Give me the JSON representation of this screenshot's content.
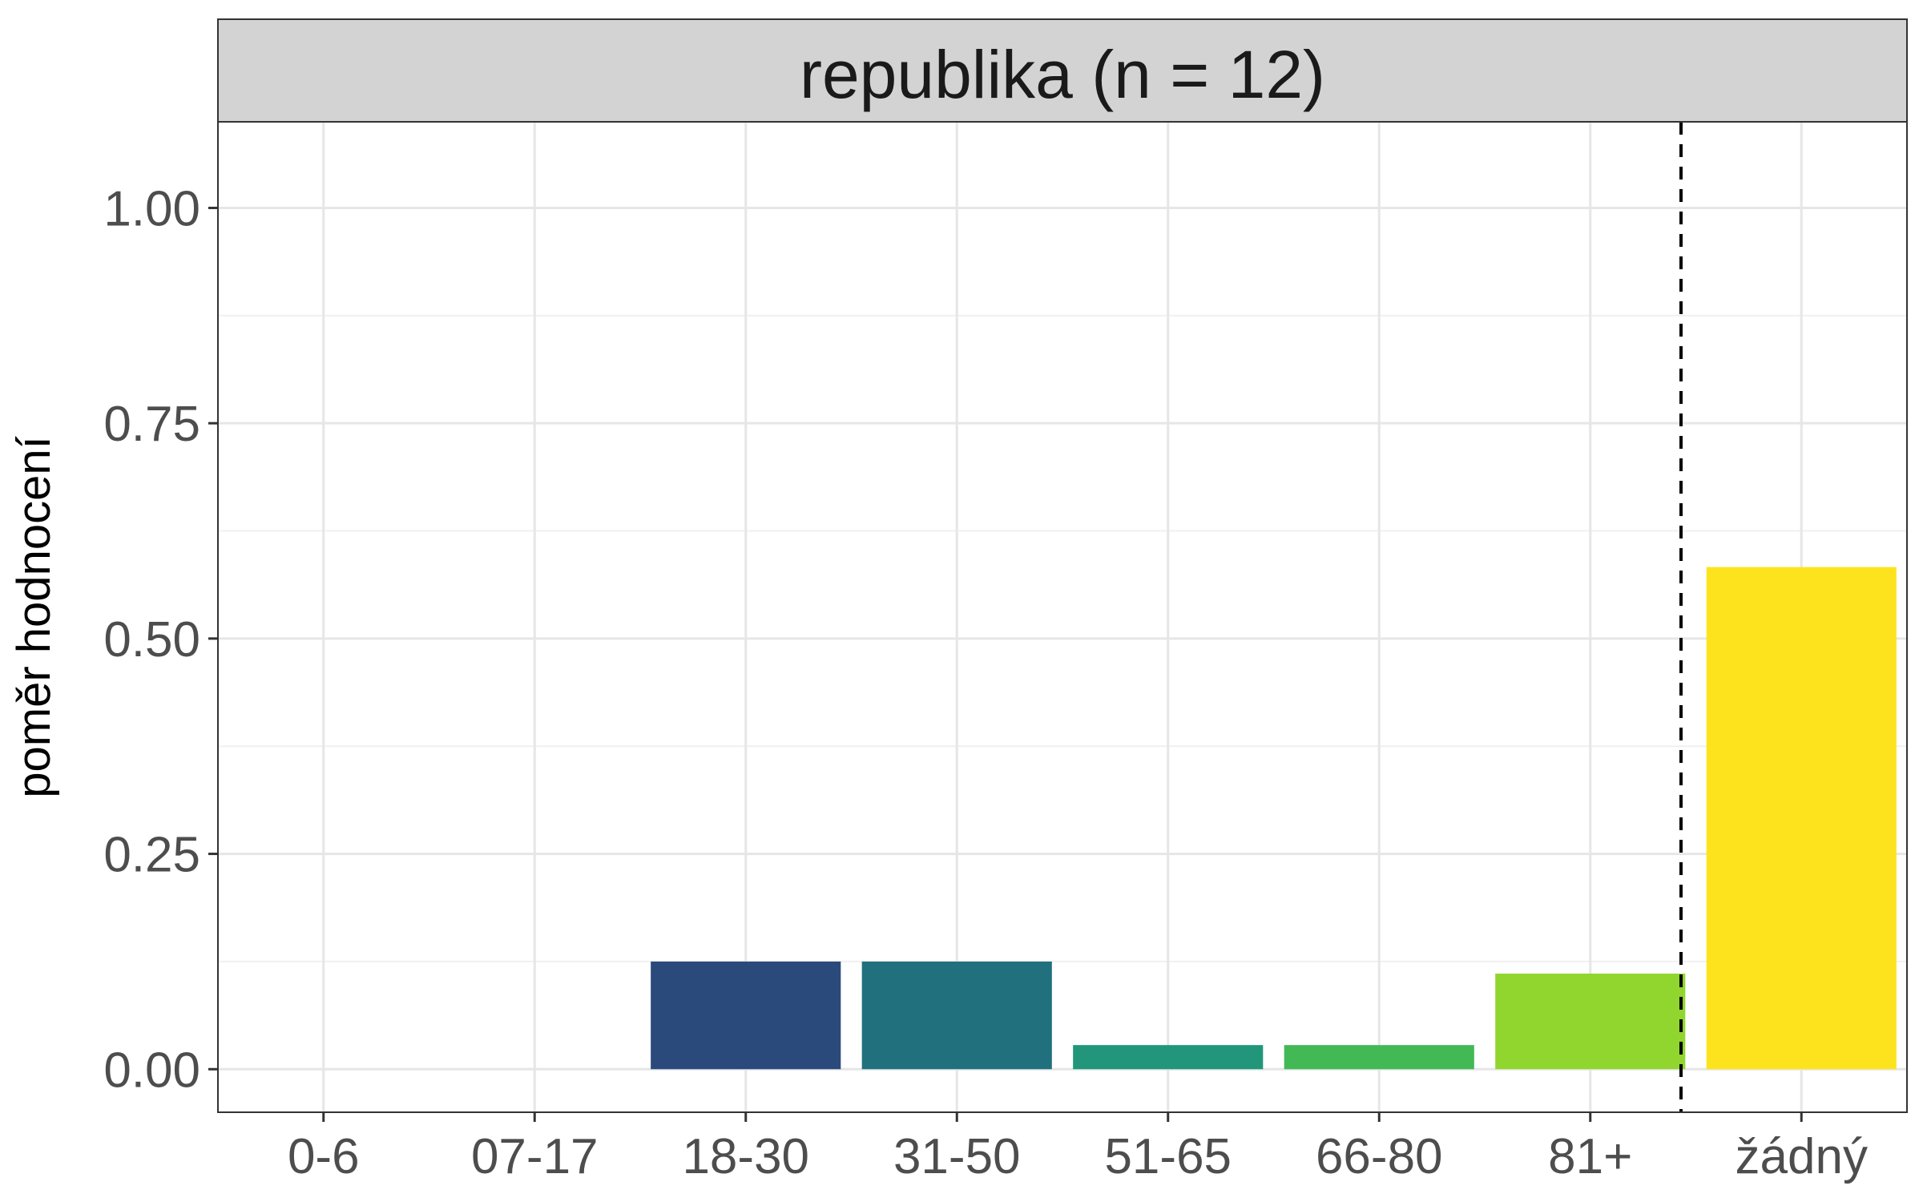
{
  "chart_data": {
    "type": "bar",
    "title": "republika (n = 12)",
    "xlabel": "",
    "ylabel": "poměr hodnocení",
    "categories": [
      "0-6",
      "07-17",
      "18-30",
      "31-50",
      "51-65",
      "66-80",
      "81+",
      "žádný"
    ],
    "values": [
      0,
      0,
      0.125,
      0.125,
      0.028,
      0.028,
      0.111,
      0.583
    ],
    "colors": [
      "#482878",
      "#3e4a89",
      "#2a4a7c",
      "#21707e",
      "#21967a",
      "#42b955",
      "#91d62e",
      "#fde31e"
    ],
    "ylim": [
      -0.05,
      1.1
    ],
    "yticks": [
      "0.00",
      "0.25",
      "0.50",
      "0.75",
      "1.00"
    ],
    "ytick_values": [
      0,
      0.25,
      0.5,
      0.75,
      1.0
    ],
    "reference_line": "dashed vertical line between 81+ and žádný",
    "grid": true,
    "legend": "none"
  }
}
